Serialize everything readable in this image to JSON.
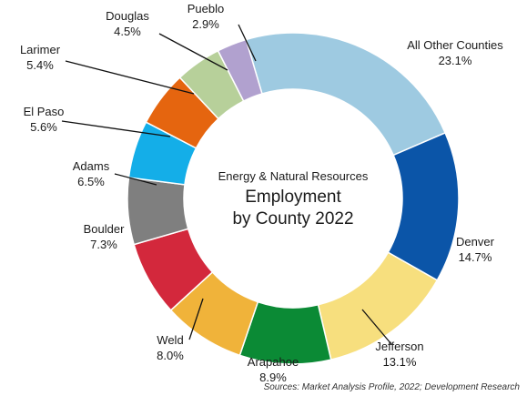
{
  "chart_data": {
    "type": "pie",
    "title_line1": "Energy & Natural Resources",
    "title_line2": "Employment",
    "title_line3": "by County 2022",
    "source": "Sources: Market Analysis Profile, 2022; Development Research",
    "slices": [
      {
        "name": "All Other Counties",
        "value": 23.1,
        "pct": "23.1%",
        "color": "#9ecae1"
      },
      {
        "name": "Denver",
        "value": 14.7,
        "pct": "14.7%",
        "color": "#0b55a8"
      },
      {
        "name": "Jefferson",
        "value": 13.1,
        "pct": "13.1%",
        "color": "#f7df7e"
      },
      {
        "name": "Arapahoe",
        "value": 8.9,
        "pct": "8.9%",
        "color": "#0b8a35"
      },
      {
        "name": "Weld",
        "value": 8.0,
        "pct": "8.0%",
        "color": "#f0b33a"
      },
      {
        "name": "Boulder",
        "value": 7.3,
        "pct": "7.3%",
        "color": "#d3283c"
      },
      {
        "name": "Adams",
        "value": 6.5,
        "pct": "6.5%",
        "color": "#7f7f7f"
      },
      {
        "name": "El Paso",
        "value": 5.6,
        "pct": "5.6%",
        "color": "#14aee8"
      },
      {
        "name": "Larimer",
        "value": 5.4,
        "pct": "5.4%",
        "color": "#e5650f"
      },
      {
        "name": "Douglas",
        "value": 4.5,
        "pct": "4.5%",
        "color": "#b7d09a"
      },
      {
        "name": "Pueblo",
        "value": 2.9,
        "pct": "2.9%",
        "color": "#b1a1cf"
      }
    ]
  }
}
